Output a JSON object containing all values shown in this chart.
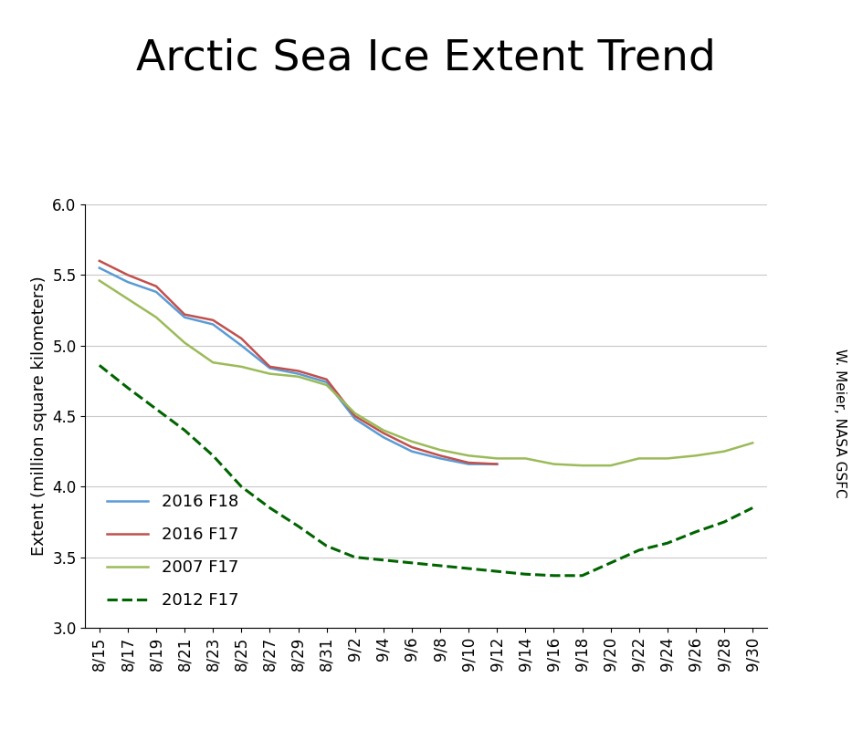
{
  "title": "Arctic Sea Ice Extent Trend",
  "ylabel": "Extent (million square kilometers)",
  "watermark": "W. Meier, NASA GSFC",
  "ylim": [
    3.0,
    6.0
  ],
  "yticks": [
    3.0,
    3.5,
    4.0,
    4.5,
    5.0,
    5.5,
    6.0
  ],
  "x_labels": [
    "8/15",
    "8/17",
    "8/19",
    "8/21",
    "8/23",
    "8/25",
    "8/27",
    "8/29",
    "8/31",
    "9/2",
    "9/4",
    "9/6",
    "9/8",
    "9/10",
    "9/12",
    "9/14",
    "9/16",
    "9/18",
    "9/20",
    "9/22",
    "9/24",
    "9/26",
    "9/28",
    "9/30"
  ],
  "series_order": [
    "2016_F18",
    "2016_F17",
    "2007_F17",
    "2012_F17"
  ],
  "series": {
    "2016_F18": {
      "label": "2016 F18",
      "color": "#5B9BD5",
      "linestyle": "solid",
      "linewidth": 1.8,
      "values": [
        5.55,
        5.45,
        5.38,
        5.2,
        5.15,
        5.0,
        4.84,
        4.8,
        4.74,
        4.48,
        4.35,
        4.25,
        4.2,
        4.16,
        4.16,
        null,
        null,
        null,
        null,
        null,
        null,
        null,
        null,
        null
      ]
    },
    "2016_F17": {
      "label": "2016 F17",
      "color": "#C0504D",
      "linestyle": "solid",
      "linewidth": 1.8,
      "values": [
        5.6,
        5.5,
        5.42,
        5.22,
        5.18,
        5.05,
        4.85,
        4.82,
        4.76,
        4.5,
        4.38,
        4.28,
        4.22,
        4.17,
        4.16,
        null,
        null,
        null,
        null,
        null,
        null,
        null,
        null,
        null
      ]
    },
    "2007_F17": {
      "label": "2007 F17",
      "color": "#9BBB59",
      "linestyle": "solid",
      "linewidth": 1.8,
      "values": [
        5.46,
        5.33,
        5.2,
        5.02,
        4.88,
        4.85,
        4.8,
        4.78,
        4.72,
        4.52,
        4.4,
        4.32,
        4.26,
        4.22,
        4.2,
        4.2,
        4.16,
        4.15,
        4.15,
        4.2,
        4.2,
        4.22,
        4.25,
        4.31
      ]
    },
    "2012_F17": {
      "label": "2012 F17",
      "color": "#006400",
      "linestyle": "dashed",
      "linewidth": 2.2,
      "values": [
        4.86,
        4.7,
        4.55,
        4.4,
        4.22,
        4.0,
        3.85,
        3.72,
        3.58,
        3.5,
        3.48,
        3.46,
        3.44,
        3.42,
        3.4,
        3.38,
        3.37,
        3.37,
        3.46,
        3.55,
        3.6,
        3.68,
        3.75,
        3.85
      ]
    }
  },
  "legend_loc": "lower left",
  "background_color": "#ffffff",
  "grid_color": "#c8c8c8",
  "title_fontsize": 34,
  "axis_fontsize": 13,
  "tick_fontsize": 12,
  "legend_fontsize": 13
}
